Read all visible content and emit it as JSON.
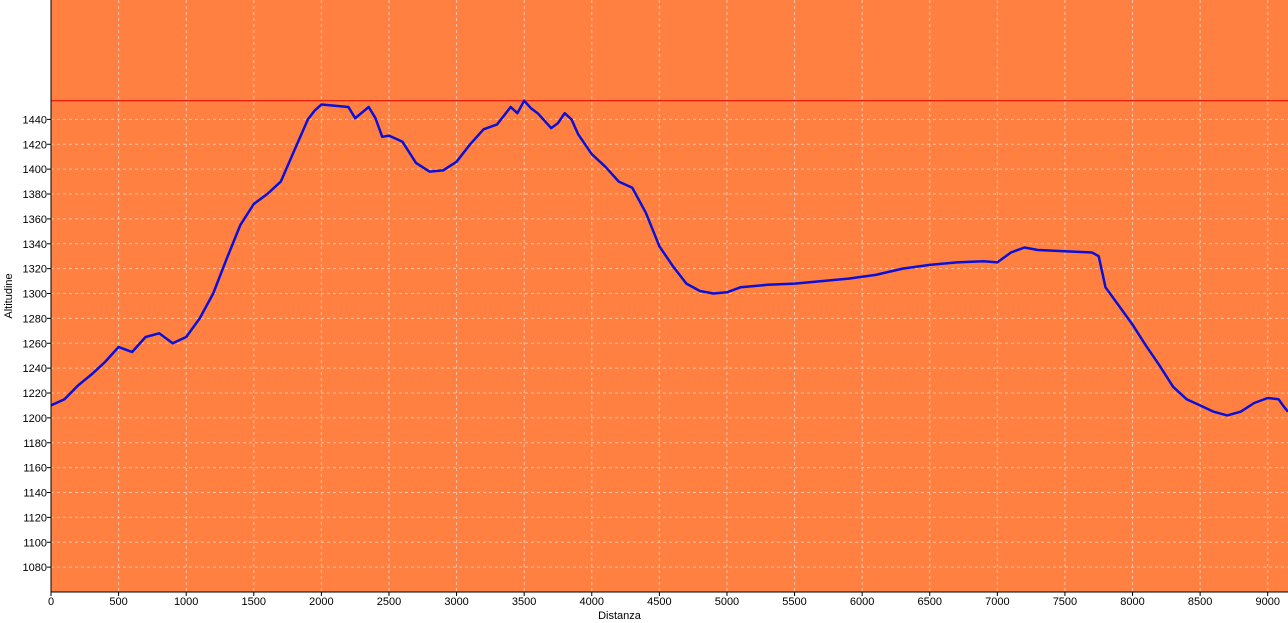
{
  "colors": {
    "plot_background": "#FF8040",
    "gridline": "#F4C3A6",
    "series_line": "#0A10D8",
    "reference_line": "#E00000",
    "axis": "#000000"
  },
  "chart_data": {
    "type": "line",
    "title": "",
    "xlabel": "Distanza",
    "ylabel": "Altitudine",
    "xlim": [
      0,
      9150
    ],
    "ylim": [
      1060,
      1536
    ],
    "grid": true,
    "legend": "none",
    "x_ticks": [
      0,
      500,
      1000,
      1500,
      2000,
      2500,
      3000,
      3500,
      4000,
      4500,
      5000,
      5500,
      6000,
      6500,
      7000,
      7500,
      8000,
      8500,
      9000
    ],
    "y_ticks": [
      1080,
      1100,
      1120,
      1140,
      1160,
      1180,
      1200,
      1220,
      1240,
      1260,
      1280,
      1300,
      1320,
      1340,
      1360,
      1380,
      1400,
      1420,
      1440
    ],
    "x_tick_labels": [
      "0",
      "500",
      "1000",
      "1500",
      "2000",
      "2500",
      "3000",
      "3500",
      "4000",
      "4500",
      "5000",
      "5500",
      "6000",
      "6500",
      "7000",
      "7500",
      "8000",
      "8500",
      "9000"
    ],
    "y_tick_labels": [
      "1080",
      "1100",
      "1120",
      "1140",
      "1160",
      "1180",
      "1200",
      "1220",
      "1240",
      "1260",
      "1280",
      "1300",
      "1320",
      "1340",
      "1360",
      "1380",
      "1400",
      "1420",
      "1440"
    ],
    "reference_line": {
      "y": 1455
    },
    "series": [
      {
        "x": [
          0,
          100,
          200,
          300,
          400,
          500,
          600,
          700,
          800,
          900,
          1000,
          1100,
          1200,
          1300,
          1400,
          1500,
          1600,
          1700,
          1800,
          1900,
          1950,
          2000,
          2100,
          2200,
          2250,
          2350,
          2400,
          2450,
          2500,
          2600,
          2700,
          2800,
          2900,
          3000,
          3100,
          3200,
          3300,
          3400,
          3450,
          3500,
          3550,
          3600,
          3700,
          3750,
          3800,
          3850,
          3900,
          4000,
          4100,
          4200,
          4300,
          4400,
          4500,
          4600,
          4700,
          4800,
          4900,
          5000,
          5100,
          5300,
          5500,
          5700,
          5900,
          6100,
          6300,
          6500,
          6700,
          6900,
          7000,
          7100,
          7200,
          7300,
          7500,
          7700,
          7750,
          7800,
          7900,
          8000,
          8100,
          8200,
          8300,
          8400,
          8500,
          8600,
          8700,
          8800,
          8900,
          9000,
          9080,
          9120,
          9150
        ],
        "y": [
          1210,
          1215,
          1226,
          1235,
          1245,
          1257,
          1253,
          1265,
          1268,
          1260,
          1265,
          1280,
          1300,
          1328,
          1355,
          1372,
          1380,
          1390,
          1415,
          1440,
          1447,
          1452,
          1451,
          1450,
          1441,
          1450,
          1441,
          1426,
          1427,
          1422,
          1405,
          1398,
          1399,
          1406,
          1420,
          1432,
          1436,
          1450,
          1445,
          1455,
          1449,
          1445,
          1433,
          1437,
          1445,
          1440,
          1428,
          1412,
          1402,
          1390,
          1385,
          1365,
          1338,
          1322,
          1308,
          1302,
          1300,
          1301,
          1305,
          1307,
          1308,
          1310,
          1312,
          1315,
          1320,
          1323,
          1325,
          1326,
          1325,
          1333,
          1337,
          1335,
          1334,
          1333,
          1330,
          1305,
          1290,
          1275,
          1258,
          1242,
          1225,
          1215,
          1210,
          1205,
          1202,
          1205,
          1212,
          1216,
          1215,
          1209,
          1205
        ]
      }
    ]
  }
}
